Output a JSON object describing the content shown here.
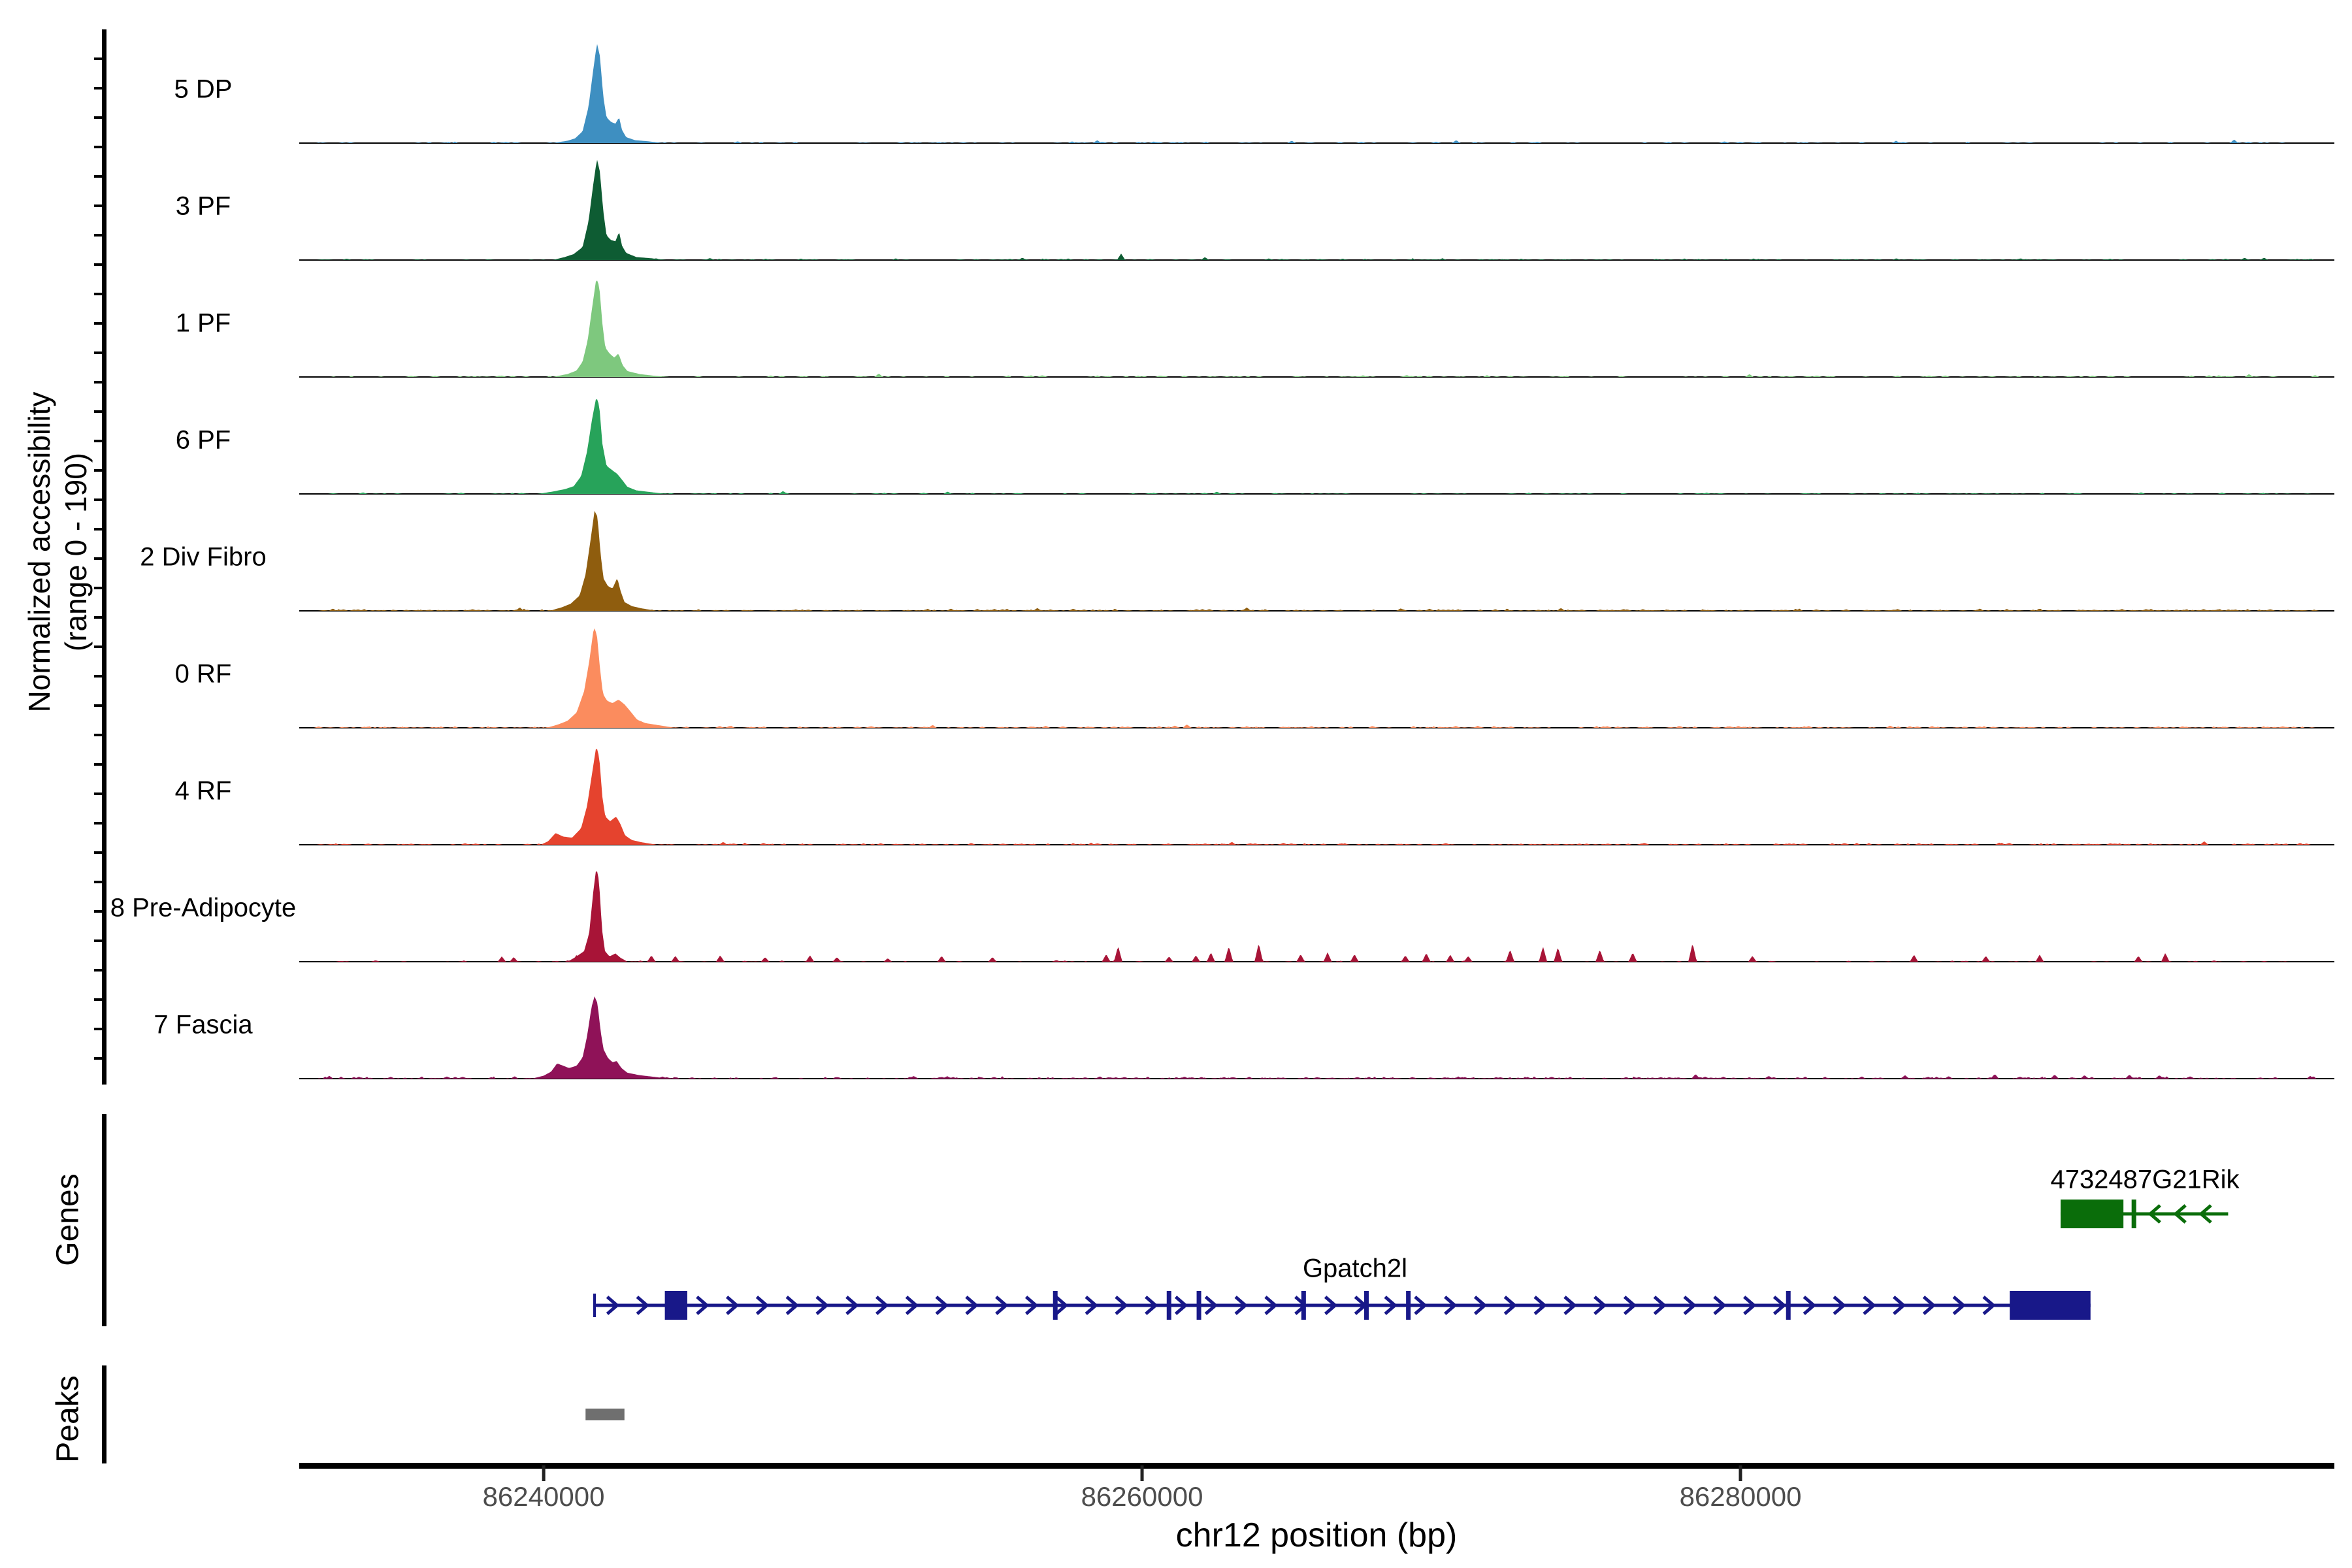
{
  "figure": {
    "y_axis_label_line1": "Normalized accessibility",
    "y_axis_label_line2": "(range 0 - 190)",
    "x_axis_label": "chr12 position (bp)",
    "genes_section_label": "Genes",
    "peaks_section_label": "Peaks"
  },
  "chart_data": {
    "type": "area",
    "title": "",
    "xlabel": "chr12 position (bp)",
    "ylabel": "Normalized accessibility (range 0 - 190)",
    "chromosome": "chr12",
    "xlim": [
      86231830,
      86299850
    ],
    "per_track_ylim": [
      0,
      190
    ],
    "grid": false,
    "x_ticks": [
      {
        "bp": 86240000,
        "label": "86240000"
      },
      {
        "bp": 86260000,
        "label": "86260000"
      },
      {
        "bp": 86280000,
        "label": "86280000"
      }
    ],
    "tracks": [
      {
        "label": "5 DP",
        "color": "#3E8FC1",
        "profile": [
          [
            86240300,
            0
          ],
          [
            86240800,
            4
          ],
          [
            86241050,
            8
          ],
          [
            86241300,
            20
          ],
          [
            86241500,
            62
          ],
          [
            86241650,
            122
          ],
          [
            86241780,
            170
          ],
          [
            86241880,
            148
          ],
          [
            86241990,
            80
          ],
          [
            86242100,
            44
          ],
          [
            86242250,
            36
          ],
          [
            86242400,
            33
          ],
          [
            86242520,
            44
          ],
          [
            86242620,
            22
          ],
          [
            86242760,
            10
          ],
          [
            86243050,
            5
          ],
          [
            86243500,
            3
          ],
          [
            86244000,
            0
          ]
        ],
        "spikes": [
          [
            86258500,
            5
          ],
          [
            86265000,
            4
          ],
          [
            86270500,
            5
          ],
          [
            86285200,
            4
          ],
          [
            86296500,
            6
          ]
        ],
        "noise": {
          "seed": 11,
          "n": 130,
          "amp": 3.5
        }
      },
      {
        "label": "3 PF",
        "color": "#0E5C33",
        "profile": [
          [
            86240300,
            0
          ],
          [
            86240700,
            5
          ],
          [
            86241000,
            10
          ],
          [
            86241300,
            22
          ],
          [
            86241500,
            66
          ],
          [
            86241650,
            126
          ],
          [
            86241780,
            172
          ],
          [
            86241880,
            150
          ],
          [
            86241990,
            84
          ],
          [
            86242100,
            42
          ],
          [
            86242250,
            34
          ],
          [
            86242400,
            32
          ],
          [
            86242520,
            48
          ],
          [
            86242620,
            24
          ],
          [
            86242760,
            12
          ],
          [
            86243100,
            5
          ],
          [
            86243600,
            3
          ],
          [
            86244100,
            0
          ]
        ],
        "spikes": [
          [
            86256000,
            4
          ],
          [
            86259300,
            11
          ],
          [
            86262100,
            5
          ],
          [
            86297500,
            4
          ]
        ],
        "noise": {
          "seed": 22,
          "n": 170,
          "amp": 4
        }
      },
      {
        "label": "1 PF",
        "color": "#7EC87E",
        "profile": [
          [
            86240300,
            0
          ],
          [
            86240800,
            5
          ],
          [
            86241100,
            11
          ],
          [
            86241300,
            26
          ],
          [
            86241470,
            62
          ],
          [
            86241620,
            118
          ],
          [
            86241760,
            168
          ],
          [
            86241860,
            154
          ],
          [
            86241960,
            92
          ],
          [
            86242060,
            50
          ],
          [
            86242200,
            40
          ],
          [
            86242360,
            33
          ],
          [
            86242500,
            40
          ],
          [
            86242640,
            20
          ],
          [
            86242800,
            10
          ],
          [
            86243200,
            5
          ],
          [
            86243700,
            2
          ],
          [
            86244200,
            0
          ]
        ],
        "spikes": [
          [
            86251200,
            6
          ],
          [
            86280300,
            5
          ],
          [
            86297000,
            5
          ]
        ],
        "noise": {
          "seed": 33,
          "n": 170,
          "amp": 3.5
        }
      },
      {
        "label": "6 PF",
        "color": "#27A35A",
        "profile": [
          [
            86239800,
            0
          ],
          [
            86240300,
            4
          ],
          [
            86240700,
            8
          ],
          [
            86241000,
            13
          ],
          [
            86241250,
            30
          ],
          [
            86241450,
            72
          ],
          [
            86241620,
            128
          ],
          [
            86241760,
            165
          ],
          [
            86241860,
            150
          ],
          [
            86241960,
            86
          ],
          [
            86242100,
            48
          ],
          [
            86242300,
            40
          ],
          [
            86242460,
            34
          ],
          [
            86242620,
            24
          ],
          [
            86242800,
            12
          ],
          [
            86243100,
            6
          ],
          [
            86243600,
            3
          ],
          [
            86244100,
            0
          ]
        ],
        "spikes": [
          [
            86248000,
            5
          ],
          [
            86253500,
            4
          ],
          [
            86262500,
            4
          ]
        ],
        "noise": {
          "seed": 44,
          "n": 150,
          "amp": 3
        }
      },
      {
        "label": "2 Div Fibro",
        "color": "#8F5D0E",
        "profile": [
          [
            86240200,
            0
          ],
          [
            86240600,
            6
          ],
          [
            86240900,
            12
          ],
          [
            86241200,
            26
          ],
          [
            86241400,
            62
          ],
          [
            86241560,
            118
          ],
          [
            86241700,
            170
          ],
          [
            86241800,
            160
          ],
          [
            86241900,
            98
          ],
          [
            86242000,
            55
          ],
          [
            86242150,
            42
          ],
          [
            86242300,
            38
          ],
          [
            86242460,
            56
          ],
          [
            86242570,
            34
          ],
          [
            86242700,
            15
          ],
          [
            86242950,
            8
          ],
          [
            86243300,
            4
          ],
          [
            86243800,
            0
          ]
        ],
        "spikes": [
          [
            86239200,
            6
          ],
          [
            86256500,
            5
          ],
          [
            86263500,
            6
          ],
          [
            86274000,
            5
          ],
          [
            86288000,
            4
          ]
        ],
        "noise": {
          "seed": 55,
          "n": 400,
          "amp": 4.5
        }
      },
      {
        "label": "0 RF",
        "color": "#FB8C5E",
        "profile": [
          [
            86240100,
            0
          ],
          [
            86240500,
            6
          ],
          [
            86240800,
            12
          ],
          [
            86241100,
            26
          ],
          [
            86241350,
            62
          ],
          [
            86241520,
            112
          ],
          [
            86241680,
            172
          ],
          [
            86241780,
            158
          ],
          [
            86241880,
            102
          ],
          [
            86241980,
            58
          ],
          [
            86242120,
            46
          ],
          [
            86242300,
            42
          ],
          [
            86242500,
            48
          ],
          [
            86242700,
            40
          ],
          [
            86242900,
            28
          ],
          [
            86243120,
            14
          ],
          [
            86243400,
            8
          ],
          [
            86243900,
            4
          ],
          [
            86244400,
            0
          ]
        ],
        "spikes": [
          [
            86253000,
            5
          ],
          [
            86261500,
            6
          ],
          [
            86285000,
            4
          ]
        ],
        "noise": {
          "seed": 66,
          "n": 360,
          "amp": 4
        }
      },
      {
        "label": "4 RF",
        "color": "#E5432E",
        "profile": [
          [
            86239900,
            0
          ],
          [
            86240150,
            6
          ],
          [
            86240400,
            20
          ],
          [
            86240650,
            14
          ],
          [
            86240950,
            12
          ],
          [
            86241250,
            28
          ],
          [
            86241450,
            66
          ],
          [
            86241620,
            122
          ],
          [
            86241760,
            168
          ],
          [
            86241860,
            148
          ],
          [
            86241960,
            82
          ],
          [
            86242060,
            48
          ],
          [
            86242220,
            40
          ],
          [
            86242420,
            48
          ],
          [
            86242560,
            36
          ],
          [
            86242720,
            16
          ],
          [
            86242950,
            8
          ],
          [
            86243300,
            4
          ],
          [
            86243800,
            0
          ]
        ],
        "spikes": [
          [
            86246000,
            5
          ],
          [
            86263000,
            5
          ],
          [
            86295500,
            6
          ]
        ],
        "noise": {
          "seed": 77,
          "n": 320,
          "amp": 4
        }
      },
      {
        "label": "8 Pre-Adipocyte",
        "color": "#A81437",
        "profile": [
          [
            86240800,
            0
          ],
          [
            86241100,
            9
          ],
          [
            86241350,
            18
          ],
          [
            86241520,
            48
          ],
          [
            86241660,
            120
          ],
          [
            86241760,
            160
          ],
          [
            86241850,
            138
          ],
          [
            86241950,
            55
          ],
          [
            86242050,
            18
          ],
          [
            86242200,
            9
          ],
          [
            86242400,
            14
          ],
          [
            86242560,
            7
          ],
          [
            86242800,
            0
          ]
        ],
        "spikes": [
          [
            86238600,
            9
          ],
          [
            86239000,
            8
          ],
          [
            86241100,
            12
          ],
          [
            86243600,
            11
          ],
          [
            86244400,
            10
          ],
          [
            86245900,
            11
          ],
          [
            86247400,
            8
          ],
          [
            86248900,
            11
          ],
          [
            86249800,
            8
          ],
          [
            86251500,
            6
          ],
          [
            86253300,
            10
          ],
          [
            86255000,
            8
          ],
          [
            86258800,
            13
          ],
          [
            86259200,
            27
          ],
          [
            86260900,
            9
          ],
          [
            86261800,
            11
          ],
          [
            86262300,
            16
          ],
          [
            86262900,
            27
          ],
          [
            86263900,
            32
          ],
          [
            86265300,
            13
          ],
          [
            86266200,
            16
          ],
          [
            86267100,
            13
          ],
          [
            86268800,
            11
          ],
          [
            86269500,
            15
          ],
          [
            86270300,
            12
          ],
          [
            86270900,
            10
          ],
          [
            86272300,
            21
          ],
          [
            86273400,
            26
          ],
          [
            86273900,
            25
          ],
          [
            86275300,
            21
          ],
          [
            86276400,
            16
          ],
          [
            86278400,
            32
          ],
          [
            86280400,
            10
          ],
          [
            86285800,
            12
          ],
          [
            86288200,
            10
          ],
          [
            86290000,
            12
          ],
          [
            86293300,
            10
          ],
          [
            86294200,
            15
          ]
        ],
        "noise": {
          "seed": 88,
          "n": 100,
          "amp": 3
        }
      },
      {
        "label": "7 Fascia",
        "color": "#8F1258",
        "profile": [
          [
            86239600,
            0
          ],
          [
            86240000,
            5
          ],
          [
            86240250,
            12
          ],
          [
            86240450,
            26
          ],
          [
            86240650,
            22
          ],
          [
            86240850,
            18
          ],
          [
            86241100,
            22
          ],
          [
            86241300,
            36
          ],
          [
            86241450,
            72
          ],
          [
            86241600,
            122
          ],
          [
            86241700,
            140
          ],
          [
            86241800,
            128
          ],
          [
            86241900,
            82
          ],
          [
            86242000,
            50
          ],
          [
            86242150,
            35
          ],
          [
            86242300,
            28
          ],
          [
            86242440,
            30
          ],
          [
            86242600,
            18
          ],
          [
            86242800,
            10
          ],
          [
            86243200,
            6
          ],
          [
            86243700,
            3
          ],
          [
            86244200,
            0
          ]
        ],
        "spikes": [
          [
            86278500,
            8
          ],
          [
            86285500,
            6
          ],
          [
            86288500,
            8
          ],
          [
            86290500,
            7
          ],
          [
            86291500,
            6
          ],
          [
            86293000,
            7
          ],
          [
            86294000,
            6
          ]
        ],
        "noise": {
          "seed": 99,
          "n": 400,
          "amp": 5
        }
      }
    ],
    "genes": [
      {
        "name": "4732487G21Rik",
        "color": "#0A6D0A",
        "strand": "-",
        "row": 0,
        "line": [
          86290700,
          86296300
        ],
        "exons_thick": [
          [
            86290700,
            86292800
          ]
        ],
        "exons_thin": [
          86293150
        ],
        "label_bp": 86293500
      },
      {
        "name": "Gpatch2l",
        "color": "#181889",
        "strand": "+",
        "row": 1,
        "line": [
          86241700,
          86291700
        ],
        "exons_thick": [
          [
            86244050,
            86244800
          ],
          [
            86289000,
            86291700
          ]
        ],
        "exons_thin": [
          86257100,
          86260900,
          86261900,
          86265400,
          86267500,
          86268900,
          86281600
        ],
        "label_bp": 86267100
      }
    ],
    "peaks": [
      {
        "start": 86241400,
        "end": 86242700
      }
    ],
    "peak_color": "#6F6F6F"
  }
}
